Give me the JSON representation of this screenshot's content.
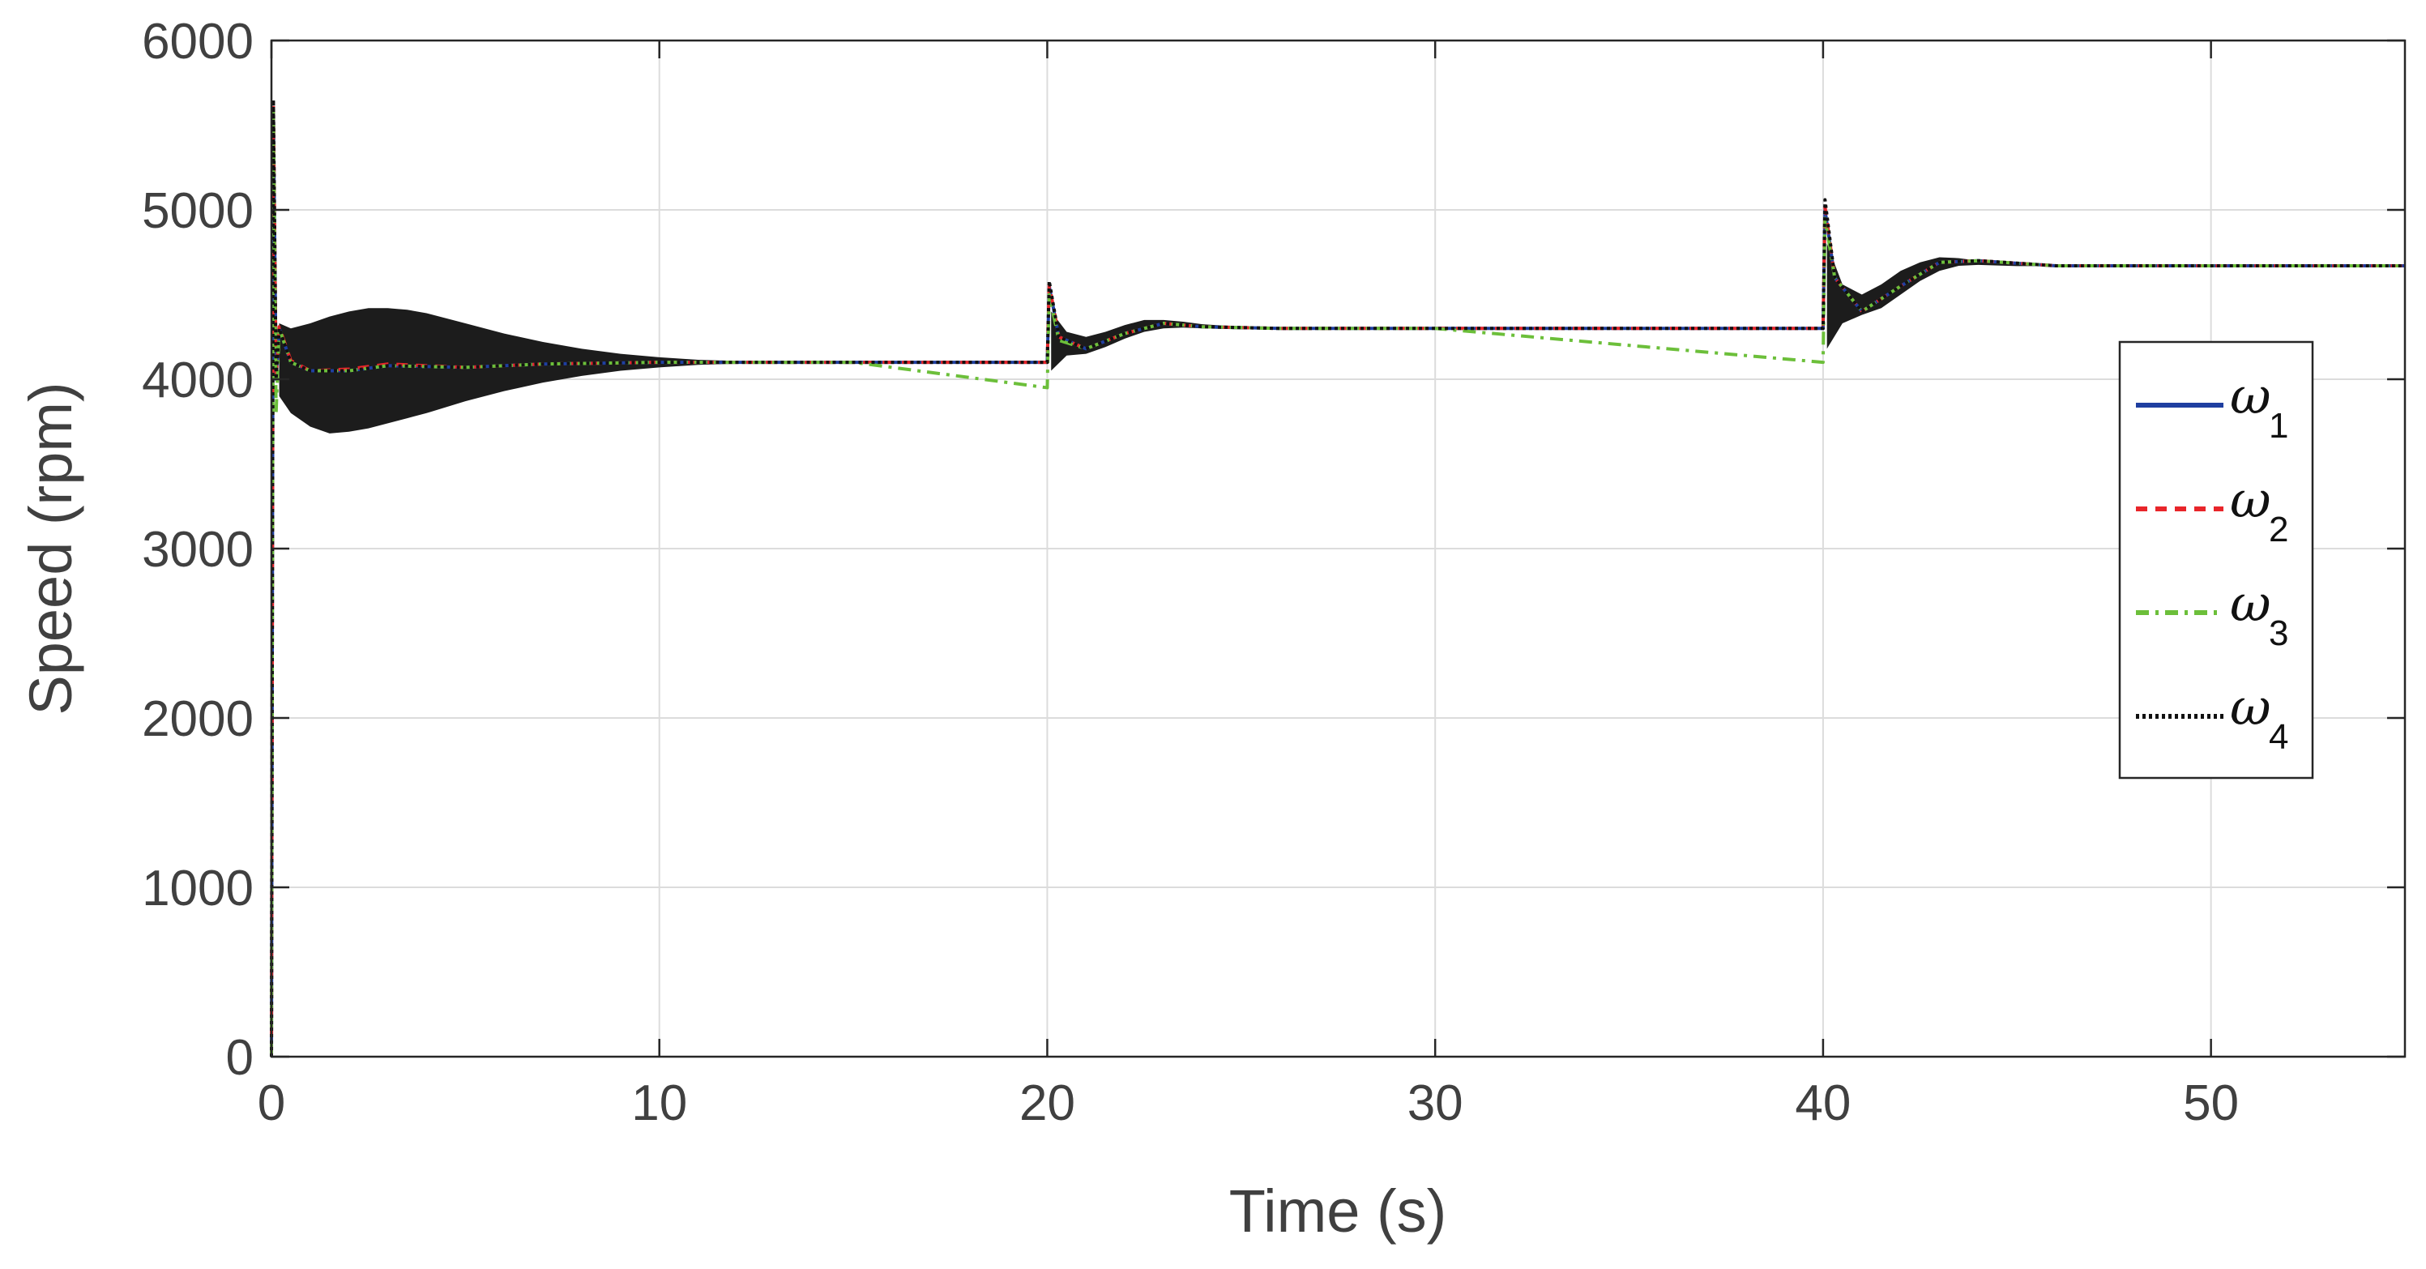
{
  "chart_data": {
    "type": "line",
    "title": "",
    "xlabel": "Time (s)",
    "ylabel": "Speed (rpm)",
    "xlim": [
      0,
      55
    ],
    "ylim": [
      0,
      6000
    ],
    "xticks": [
      0,
      10,
      20,
      30,
      40,
      50
    ],
    "yticks": [
      0,
      1000,
      2000,
      3000,
      4000,
      5000,
      6000
    ],
    "xtick_labels": [
      "0",
      "10",
      "20",
      "30",
      "40",
      "50"
    ],
    "ytick_labels": [
      "0",
      "1000",
      "2000",
      "3000",
      "4000",
      "5000",
      "6000"
    ],
    "grid": true,
    "legend_position": "right",
    "series": [
      {
        "name": "ω",
        "subscript": "1",
        "color": "#1f3fa0",
        "dash": "solid",
        "x": [
          0,
          0.05,
          0.12,
          0.2,
          0.5,
          1,
          2,
          3,
          5,
          7,
          10,
          15,
          20,
          20.05,
          20.3,
          21,
          22,
          23,
          24,
          26,
          30,
          40,
          40.05,
          40.3,
          41,
          42,
          43,
          44,
          46,
          50,
          55
        ],
        "y": [
          0,
          5600,
          4000,
          4300,
          4100,
          4050,
          4050,
          4080,
          4070,
          4090,
          4100,
          4100,
          4100,
          4550,
          4250,
          4180,
          4270,
          4330,
          4310,
          4300,
          4300,
          4300,
          5000,
          4600,
          4400,
          4550,
          4690,
          4700,
          4670,
          4670,
          4670
        ]
      },
      {
        "name": "ω",
        "subscript": "2",
        "color": "#e8252a",
        "dash": "dashed",
        "x": [
          0,
          0.05,
          0.12,
          0.2,
          0.5,
          1,
          2,
          3,
          5,
          7,
          10,
          15,
          20,
          20.05,
          20.3,
          21,
          22,
          23,
          24,
          26,
          30,
          40,
          40.05,
          40.3,
          41,
          42,
          43,
          44,
          46,
          50,
          55
        ],
        "y": [
          0,
          5620,
          4010,
          4310,
          4110,
          4050,
          4060,
          4090,
          4070,
          4090,
          4100,
          4100,
          4100,
          4560,
          4250,
          4180,
          4270,
          4330,
          4310,
          4300,
          4300,
          4300,
          5020,
          4600,
          4400,
          4550,
          4690,
          4700,
          4670,
          4670,
          4670
        ]
      },
      {
        "name": "ω",
        "subscript": "3",
        "color": "#6cbf3a",
        "dash": "dashdot",
        "x": [
          0,
          0.05,
          0.12,
          0.2,
          0.5,
          1,
          2,
          3,
          5,
          7,
          10,
          15,
          20,
          20.05,
          20.3,
          21,
          22,
          23,
          24,
          26,
          30,
          40,
          40.05,
          40.3,
          41,
          42,
          43,
          44,
          46,
          50,
          55
        ],
        "y": [
          0,
          5600,
          3800,
          4300,
          4100,
          4050,
          4050,
          4080,
          4070,
          4090,
          4100,
          4100,
          3950,
          4500,
          4230,
          4180,
          4270,
          4330,
          4310,
          4300,
          4300,
          4100,
          4950,
          4600,
          4400,
          4550,
          4690,
          4700,
          4670,
          4670,
          4670
        ]
      },
      {
        "name": "ω",
        "subscript": "4",
        "color": "#111111",
        "dash": "dotted",
        "x": [
          0,
          0.05,
          0.12,
          0.2,
          0.5,
          1,
          2,
          3,
          5,
          7,
          10,
          15,
          20,
          20.05,
          20.3,
          21,
          22,
          23,
          24,
          26,
          30,
          40,
          40.05,
          40.3,
          41,
          42,
          43,
          44,
          46,
          50,
          55
        ],
        "y": [
          0,
          5650,
          4000,
          4300,
          4100,
          4050,
          4050,
          4080,
          4070,
          4090,
          4100,
          4100,
          4100,
          4580,
          4250,
          4180,
          4270,
          4330,
          4310,
          4300,
          4300,
          4300,
          5060,
          4600,
          4400,
          4550,
          4690,
          4700,
          4670,
          4670,
          4670
        ]
      }
    ],
    "oscillation_band": {
      "color": "#1c1c1c",
      "description_x": [
        0.2,
        0.5,
        1,
        1.5,
        2,
        2.5,
        3,
        3.5,
        4,
        5,
        6,
        7,
        8,
        9,
        10,
        11,
        12,
        13,
        14,
        15,
        16,
        17,
        18,
        19,
        20
      ],
      "upper": [
        4330,
        4300,
        4330,
        4370,
        4400,
        4420,
        4420,
        4410,
        4390,
        4330,
        4270,
        4220,
        4180,
        4150,
        4130,
        4115,
        4108,
        4104,
        4102,
        4101,
        4100,
        4100,
        4100,
        4100,
        4100
      ],
      "lower": [
        3900,
        3800,
        3720,
        3680,
        3690,
        3710,
        3740,
        3770,
        3800,
        3870,
        3930,
        3980,
        4020,
        4050,
        4070,
        4085,
        4092,
        4096,
        4098,
        4099,
        4100,
        4100,
        4100,
        4100,
        4100
      ]
    }
  }
}
